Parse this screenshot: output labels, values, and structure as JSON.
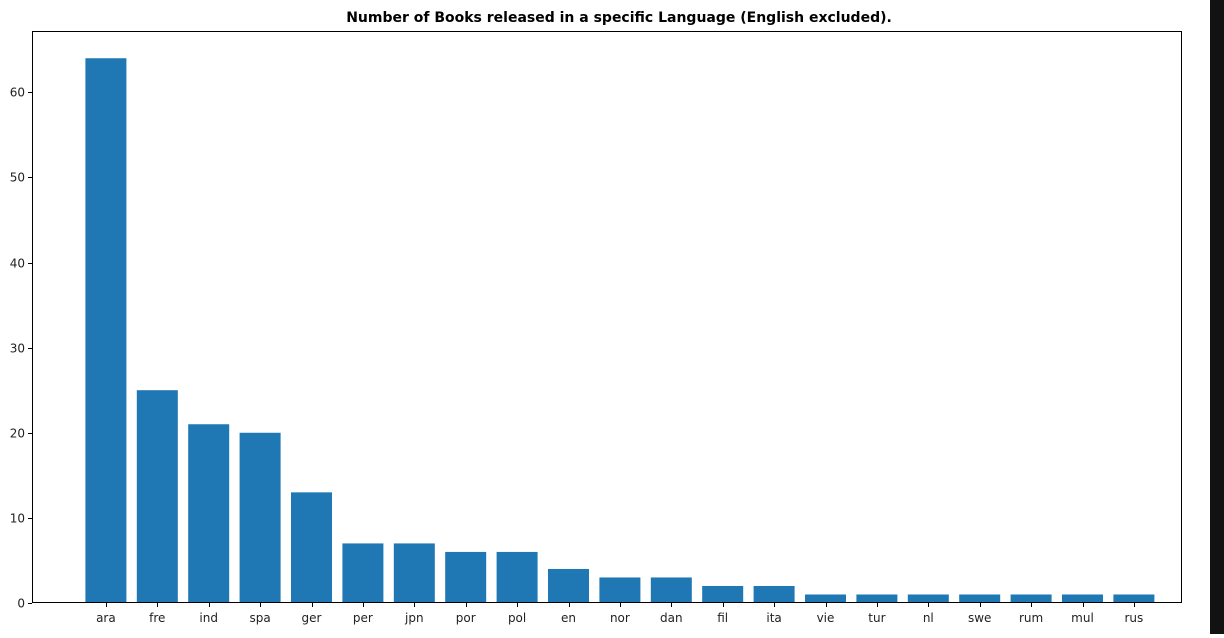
{
  "chart_data": {
    "type": "bar",
    "title": "Number of Books released in a specific Language (English excluded).",
    "xlabel": "",
    "ylabel": "",
    "categories": [
      "ara",
      "fre",
      "ind",
      "spa",
      "ger",
      "per",
      "jpn",
      "por",
      "pol",
      "en",
      "nor",
      "dan",
      "fil",
      "ita",
      "vie",
      "tur",
      "nl",
      "swe",
      "rum",
      "mul",
      "rus"
    ],
    "values": [
      64,
      25,
      21,
      20,
      13,
      7,
      7,
      6,
      6,
      4,
      3,
      3,
      2,
      2,
      1,
      1,
      1,
      1,
      1,
      1,
      1
    ],
    "ylim": [
      0,
      67.2
    ],
    "yticks": [
      0,
      10,
      20,
      30,
      40,
      50,
      60
    ],
    "grid": false,
    "bar_color": "#1f77b4"
  },
  "theme": {
    "background": "#ffffff",
    "side_strip": "#121212"
  }
}
